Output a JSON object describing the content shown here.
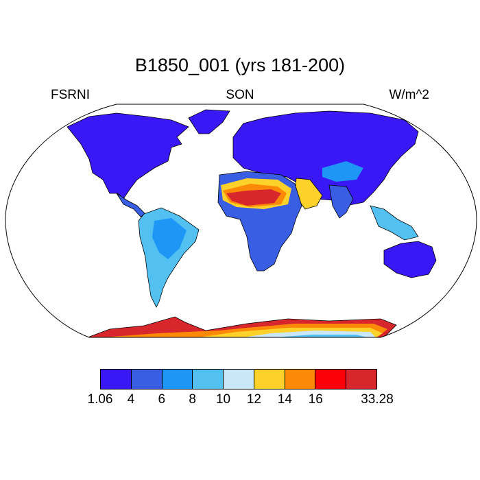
{
  "figure": {
    "title": "B1850_001 (yrs 181-200)",
    "left_label": "FSRNI",
    "center_label": "SON",
    "right_label": "W/m^2"
  },
  "colorbar": {
    "colors": [
      "#3a17f5",
      "#3a5ee3",
      "#1e96f5",
      "#52c0f0",
      "#c9e7f7",
      "#fcd12a",
      "#fd8a06",
      "#fc0208",
      "#d8262d"
    ],
    "labels": [
      "1.06",
      "4",
      "6",
      "8",
      "10",
      "12",
      "14",
      "16",
      "33.28"
    ]
  },
  "colors": {
    "ocean": "#ffffff",
    "coastline": "#000000"
  }
}
